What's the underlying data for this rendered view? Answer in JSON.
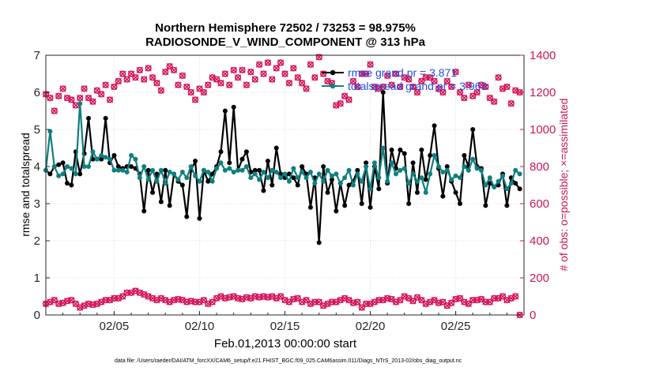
{
  "chart_data": {
    "type": "line",
    "title": "Northern Hemisphere 72502 / 73253 = 98.975%",
    "subtitle": "RADIOSONDE_V_WIND_COMPONENT @ 313 hPa",
    "xlabel": "Feb.01,2013 00:00:00 start",
    "ylabel_left": "rmse and totalspread",
    "ylabel_right": "# of obs: o=possible; ×=assimilated",
    "x_ticks": [
      "02/05",
      "02/10",
      "02/15",
      "02/20",
      "02/25"
    ],
    "x_tick_days": [
      5,
      10,
      15,
      20,
      25
    ],
    "xlim_days": [
      1,
      29
    ],
    "ylim_left": [
      0,
      7
    ],
    "ylim_right": [
      0,
      1400
    ],
    "yticks_left": [
      "0",
      "1",
      "2",
      "3",
      "4",
      "5",
      "6",
      "7"
    ],
    "yticks_right": [
      "0",
      "200",
      "400",
      "600",
      "800",
      "1000",
      "1200",
      "1400"
    ],
    "grid": true,
    "legend_position": "top-right",
    "colors": {
      "rmse": "#000000",
      "totalspread": "#0f7f80",
      "obs": "#d4145a",
      "legend_text": "#1f4fe0",
      "right_axis": "#c8175b"
    },
    "x_days": [
      1.0,
      1.25,
      1.5,
      1.75,
      2.0,
      2.25,
      2.5,
      2.75,
      3.0,
      3.25,
      3.5,
      3.75,
      4.0,
      4.25,
      4.5,
      4.75,
      5.0,
      5.25,
      5.5,
      5.75,
      6.0,
      6.25,
      6.5,
      6.75,
      7.0,
      7.25,
      7.5,
      7.75,
      8.0,
      8.25,
      8.5,
      8.75,
      9.0,
      9.25,
      9.5,
      9.75,
      10.0,
      10.25,
      10.5,
      10.75,
      11.0,
      11.25,
      11.5,
      11.75,
      12.0,
      12.25,
      12.5,
      12.75,
      13.0,
      13.25,
      13.5,
      13.75,
      14.0,
      14.25,
      14.5,
      14.75,
      15.0,
      15.25,
      15.5,
      15.75,
      16.0,
      16.25,
      16.5,
      16.75,
      17.0,
      17.25,
      17.5,
      17.75,
      18.0,
      18.25,
      18.5,
      18.75,
      19.0,
      19.25,
      19.5,
      19.75,
      20.0,
      20.25,
      20.5,
      20.75,
      21.0,
      21.25,
      21.5,
      21.75,
      22.0,
      22.25,
      22.5,
      22.75,
      23.0,
      23.25,
      23.5,
      23.75,
      24.0,
      24.25,
      24.5,
      24.75,
      25.0,
      25.25,
      25.5,
      25.75,
      26.0,
      26.25,
      26.5,
      26.75,
      27.0,
      27.25,
      27.5,
      27.75,
      28.0,
      28.25,
      28.5,
      28.75
    ],
    "series": [
      {
        "name": "rmse grand pr = 3.871",
        "values": [
          3.9,
          3.8,
          4.0,
          4.05,
          4.1,
          3.55,
          3.5,
          4.4,
          3.8,
          4.35,
          5.3,
          4.2,
          4.2,
          4.2,
          5.3,
          4.1,
          4.3,
          4.0,
          3.95,
          4.0,
          4.0,
          3.95,
          3.8,
          2.8,
          3.9,
          3.3,
          3.8,
          3.05,
          3.9,
          2.95,
          3.8,
          3.6,
          3.5,
          2.65,
          3.9,
          4.15,
          2.6,
          3.9,
          3.6,
          3.8,
          4.0,
          4.4,
          5.5,
          4.1,
          5.6,
          3.9,
          4.2,
          4.4,
          3.85,
          3.9,
          3.9,
          3.35,
          4.15,
          3.5,
          4.5,
          3.8,
          3.7,
          3.8,
          3.7,
          3.5,
          4.0,
          3.8,
          2.9,
          3.7,
          1.95,
          4.0,
          3.3,
          3.65,
          2.8,
          3.55,
          2.95,
          3.5,
          3.6,
          3.9,
          3.0,
          4.1,
          2.9,
          4.0,
          3.4,
          6.0,
          3.55,
          4.45,
          3.95,
          4.45,
          4.35,
          3.0,
          4.1,
          3.3,
          4.45,
          3.65,
          4.3,
          5.1,
          3.95,
          3.2,
          4.0,
          3.6,
          3.3,
          3.0,
          4.3,
          4.0,
          5.0,
          4.0,
          3.95,
          2.95,
          3.55,
          3.45,
          3.5,
          3.8,
          2.95,
          3.7,
          3.55,
          3.4
        ]
      },
      {
        "name": "totalspread grand pr = 3.963",
        "values": [
          3.9,
          4.95,
          4.0,
          3.75,
          3.8,
          4.0,
          3.95,
          3.8,
          5.7,
          4.0,
          4.0,
          4.4,
          4.2,
          4.3,
          4.25,
          4.2,
          3.9,
          3.9,
          3.9,
          3.85,
          4.3,
          4.2,
          3.7,
          4.0,
          3.65,
          3.9,
          3.6,
          3.9,
          3.55,
          3.85,
          3.8,
          3.65,
          3.85,
          3.7,
          4.0,
          3.75,
          3.6,
          3.9,
          3.85,
          3.6,
          3.95,
          4.1,
          3.9,
          3.95,
          3.85,
          3.9,
          3.9,
          4.0,
          3.7,
          3.8,
          3.65,
          3.85,
          3.7,
          3.9,
          3.85,
          3.7,
          3.8,
          3.6,
          3.95,
          3.7,
          3.85,
          3.7,
          3.85,
          3.55,
          3.8,
          3.6,
          3.9,
          3.75,
          3.8,
          3.55,
          3.7,
          3.9,
          3.5,
          3.8,
          3.6,
          4.0,
          3.4,
          4.1,
          3.7,
          4.5,
          3.6,
          4.1,
          3.8,
          3.9,
          3.95,
          3.55,
          3.8,
          3.6,
          3.7,
          3.3,
          3.8,
          4.3,
          4.0,
          3.85,
          3.9,
          3.65,
          3.75,
          3.7,
          4.0,
          3.9,
          4.2,
          3.95,
          3.9,
          3.5,
          3.7,
          3.45,
          3.6,
          3.75,
          3.4,
          3.55,
          3.9,
          3.8
        ]
      }
    ],
    "obs_possible": [
      1190,
      1170,
      1100,
      1180,
      1220,
      1170,
      1160,
      1130,
      1170,
      1220,
      1170,
      1150,
      1210,
      1190,
      1240,
      1160,
      1230,
      1260,
      1300,
      1270,
      1300,
      1280,
      1320,
      1270,
      1330,
      1280,
      1250,
      1210,
      1310,
      1340,
      1320,
      1240,
      1290,
      1230,
      1200,
      1160,
      1220,
      1200,
      1240,
      1280,
      1270,
      1250,
      1300,
      1240,
      1320,
      1280,
      1320,
      1240,
      1310,
      1270,
      1350,
      1300,
      1360,
      1270,
      1330,
      1360,
      1300,
      1250,
      1330,
      1280,
      1250,
      1220,
      1350,
      1280,
      1390,
      1300,
      1260,
      1250,
      1130,
      1140,
      1180,
      1160,
      1260,
      1230,
      1300,
      1300,
      1350,
      1230,
      1220,
      1230,
      1290,
      1240,
      1300,
      1230,
      1280,
      1270,
      1230,
      1200,
      1260,
      1280,
      1280,
      1260,
      1220,
      1200,
      1260,
      1230,
      1310,
      1200,
      1170,
      1240,
      1180,
      1200,
      1240,
      1230,
      1170,
      1150,
      1280,
      1220,
      1230,
      1140,
      1210,
      1200
    ],
    "obs_assimilated": [
      60,
      70,
      80,
      60,
      65,
      75,
      80,
      60,
      40,
      50,
      60,
      55,
      60,
      70,
      80,
      80,
      90,
      90,
      100,
      120,
      120,
      130,
      120,
      110,
      100,
      90,
      80,
      90,
      80,
      70,
      80,
      85,
      80,
      70,
      75,
      70,
      70,
      80,
      60,
      70,
      90,
      100,
      90,
      95,
      100,
      90,
      85,
      95,
      90,
      100,
      95,
      100,
      95,
      100,
      90,
      100,
      80,
      70,
      85,
      90,
      70,
      80,
      60,
      70,
      70,
      50,
      60,
      70,
      70,
      80,
      90,
      80,
      65,
      70,
      40,
      60,
      60,
      70,
      80,
      80,
      90,
      85,
      70,
      80,
      100,
      90,
      75,
      95,
      80,
      60,
      70,
      80,
      65,
      70,
      50,
      65,
      85,
      90,
      70,
      60,
      80,
      80,
      85,
      70,
      70,
      90,
      90,
      100,
      80,
      90,
      100,
      0
    ]
  },
  "footer": "data file: /Users/raeder/DAI/ATM_forcXX/CAM6_setup/f.e21.FHIST_BGC.f09_025.CAM6assim.011/Diags_NTrS_2013-02/obs_diag_output.nc"
}
